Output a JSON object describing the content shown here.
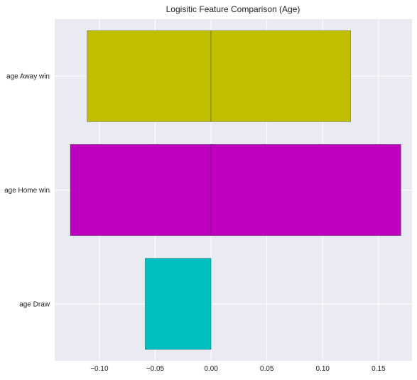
{
  "chart_data": {
    "type": "bar",
    "orientation": "horizontal",
    "title": "Logisitic Feature Comparison (Age)",
    "xlabel": "",
    "ylabel": "",
    "xlim": [
      -0.14,
      0.18
    ],
    "xticks": [
      -0.1,
      -0.05,
      0.0,
      0.05,
      0.1,
      0.15
    ],
    "xtick_labels": [
      "−0.10",
      "−0.05",
      "0.00",
      "0.05",
      "0.10",
      "0.15"
    ],
    "grid": true,
    "categories": [
      "age Draw",
      "age Home win",
      "age Away win"
    ],
    "bars": [
      {
        "category": "age Draw",
        "segments": [
          {
            "value": -0.059
          }
        ],
        "color": "#00bfbf"
      },
      {
        "category": "age Home win",
        "segments": [
          {
            "value": -0.126
          },
          {
            "value": 0.17
          }
        ],
        "color": "#bf00bf"
      },
      {
        "category": "age Away win",
        "segments": [
          {
            "value": -0.111
          },
          {
            "value": 0.125
          }
        ],
        "color": "#bfbf00"
      }
    ],
    "background_color": "#eaeaf2"
  }
}
